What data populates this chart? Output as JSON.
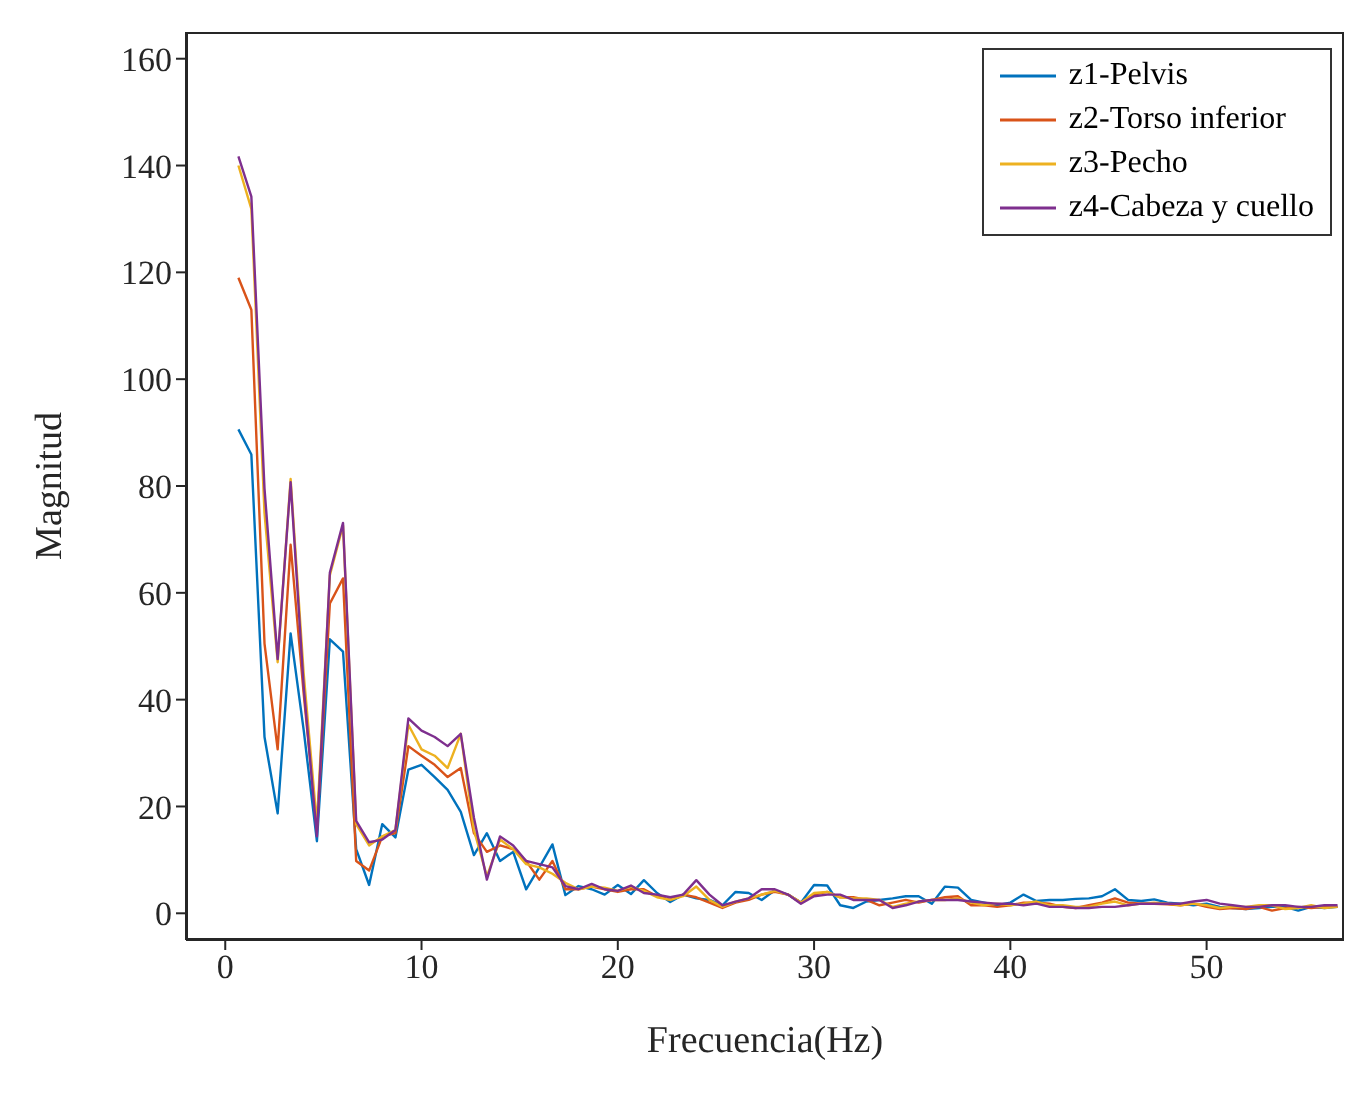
{
  "chart_data": {
    "type": "line",
    "xlabel": "Frecuencia(Hz)",
    "ylabel": "Magnitud",
    "x": [
      0.67,
      1.33,
      2,
      2.67,
      3.33,
      4,
      4.67,
      5.33,
      6,
      6.67,
      7.33,
      8,
      8.67,
      9.33,
      10,
      10.67,
      11.33,
      12,
      12.67,
      13.33,
      14,
      14.67,
      15.33,
      16,
      16.67,
      17.33,
      18,
      18.67,
      19.33,
      20,
      20.67,
      21.33,
      22,
      22.67,
      23.33,
      24,
      24.67,
      25.33,
      26,
      26.67,
      27.33,
      28,
      28.67,
      29.33,
      30,
      30.67,
      31.33,
      32,
      32.67,
      33.33,
      34,
      34.67,
      35.33,
      36,
      36.67,
      37.33,
      38,
      38.67,
      39.33,
      40,
      40.67,
      41.33,
      42,
      42.67,
      43.33,
      44,
      44.67,
      45.33,
      46,
      46.67,
      47.33,
      48,
      48.67,
      49.33,
      50,
      50.67,
      51.33,
      52,
      52.67,
      53.33,
      54,
      54.67,
      55.33,
      56,
      56.67
    ],
    "series": [
      {
        "name": "z1-Pelvis",
        "color": "#0072bd",
        "values": [
          90.6,
          85.9,
          33,
          18.7,
          52.4,
          34.2,
          13.5,
          51.3,
          49,
          12,
          5.3,
          16.7,
          14.2,
          26.9,
          27.8,
          25.5,
          23.1,
          19,
          10.9,
          15,
          9.8,
          11.5,
          4.5,
          8.6,
          12.9,
          3.4,
          5.1,
          4.5,
          3.5,
          5.3,
          3.6,
          6.2,
          3.8,
          2.1,
          3.5,
          2.8,
          2.5,
          1.5,
          4,
          3.8,
          2.5,
          4.3,
          3.5,
          2,
          5.3,
          5.2,
          1.5,
          1,
          2.2,
          2.5,
          2.8,
          3.2,
          3.2,
          1.8,
          5,
          4.8,
          2.5,
          2,
          1.5,
          2,
          3.5,
          2.3,
          2.5,
          2.5,
          2.7,
          2.8,
          3.2,
          4.5,
          2.5,
          2.3,
          2.6,
          2,
          1.8,
          1.5,
          1.8,
          1.2,
          1,
          0.8,
          1,
          1.2,
          1.2,
          0.5,
          1.2,
          1,
          1.2
        ]
      },
      {
        "name": "z2-Torso inferior",
        "color": "#d95319",
        "values": [
          119,
          113,
          50.5,
          30.7,
          69,
          41,
          15.6,
          58,
          62.7,
          9.8,
          8,
          14.4,
          15,
          31.3,
          29.5,
          27.8,
          25.5,
          27.2,
          15,
          11.5,
          12.7,
          12,
          9.8,
          6.3,
          9.8,
          4.5,
          4.5,
          5,
          4.5,
          4,
          4.5,
          4.5,
          3.2,
          2.5,
          3.5,
          3,
          2,
          1,
          2,
          2.5,
          3.5,
          4,
          3.5,
          2,
          3.5,
          4,
          3,
          3,
          2.5,
          1.5,
          2,
          2.5,
          2,
          2.5,
          3,
          3.2,
          1.5,
          1.5,
          1.2,
          1.5,
          2,
          2,
          1.8,
          1.2,
          1,
          1.5,
          2,
          2.8,
          2,
          1.8,
          1.8,
          1.7,
          1.5,
          1.8,
          1.2,
          0.8,
          1,
          0.8,
          1.2,
          0.5,
          1,
          1.2,
          1,
          1.2,
          1.2
        ]
      },
      {
        "name": "z3-Pecho",
        "color": "#edb120",
        "values": [
          140,
          131.9,
          74.9,
          47,
          81.3,
          44.7,
          16.7,
          63.3,
          72.6,
          16.7,
          12.7,
          14.4,
          15.6,
          35.3,
          30.7,
          29.5,
          27.2,
          33.6,
          15.6,
          6.9,
          13.8,
          12,
          9.2,
          8.6,
          7.4,
          5.7,
          4.5,
          5,
          4.8,
          4.2,
          5,
          4.2,
          3,
          2.5,
          3.2,
          5,
          2.5,
          1.2,
          2.2,
          2.8,
          3.5,
          4.2,
          3.5,
          2,
          3.8,
          4,
          3,
          2.8,
          2.8,
          2.5,
          1.2,
          1.8,
          2.2,
          2.5,
          2.5,
          2.8,
          2,
          1.5,
          1.8,
          1.5,
          1.8,
          2.2,
          1.5,
          1.5,
          1.2,
          1.2,
          1.8,
          2.2,
          1.5,
          1.8,
          2,
          1.8,
          1.5,
          1.8,
          1.5,
          1,
          1.2,
          1.2,
          1.5,
          1.5,
          0.8,
          1,
          1.5,
          1,
          1.2
        ]
      },
      {
        "name": "z4-Cabeza y cuello",
        "color": "#7e2f8e",
        "values": [
          141.7,
          134.2,
          79.5,
          47.6,
          80.7,
          42.3,
          14.4,
          63.8,
          73.1,
          17.3,
          13.3,
          13.8,
          15.6,
          36.5,
          34.2,
          33,
          31.3,
          33.6,
          17.9,
          6.3,
          14.4,
          12.7,
          9.8,
          9.2,
          8.6,
          5.1,
          4.5,
          5.5,
          4.5,
          4.2,
          5.2,
          3.8,
          3.5,
          3,
          3.5,
          6.2,
          3.5,
          1.5,
          2.2,
          2.8,
          4.5,
          4.5,
          3.5,
          1.8,
          3.2,
          3.5,
          3.5,
          2.5,
          2.5,
          2.5,
          1,
          1.5,
          2.2,
          2.5,
          2.5,
          2.5,
          2.2,
          2,
          1.8,
          1.8,
          1.5,
          1.8,
          1.2,
          1.2,
          1,
          1,
          1.2,
          1.2,
          1.5,
          1.8,
          1.8,
          1.8,
          1.8,
          2.2,
          2.5,
          1.8,
          1.5,
          1.2,
          1.2,
          1.5,
          1.5,
          1.2,
          1.2,
          1.5,
          1.5
        ]
      }
    ],
    "xlim": [
      -2,
      57
    ],
    "xticks": [
      0,
      10,
      20,
      30,
      40,
      50
    ],
    "ylim": [
      -5,
      165
    ],
    "yticks": [
      0,
      20,
      40,
      60,
      80,
      100,
      120,
      140,
      160
    ],
    "grid": false,
    "legend": "top right",
    "marker": "none",
    "line_style": "solid"
  }
}
